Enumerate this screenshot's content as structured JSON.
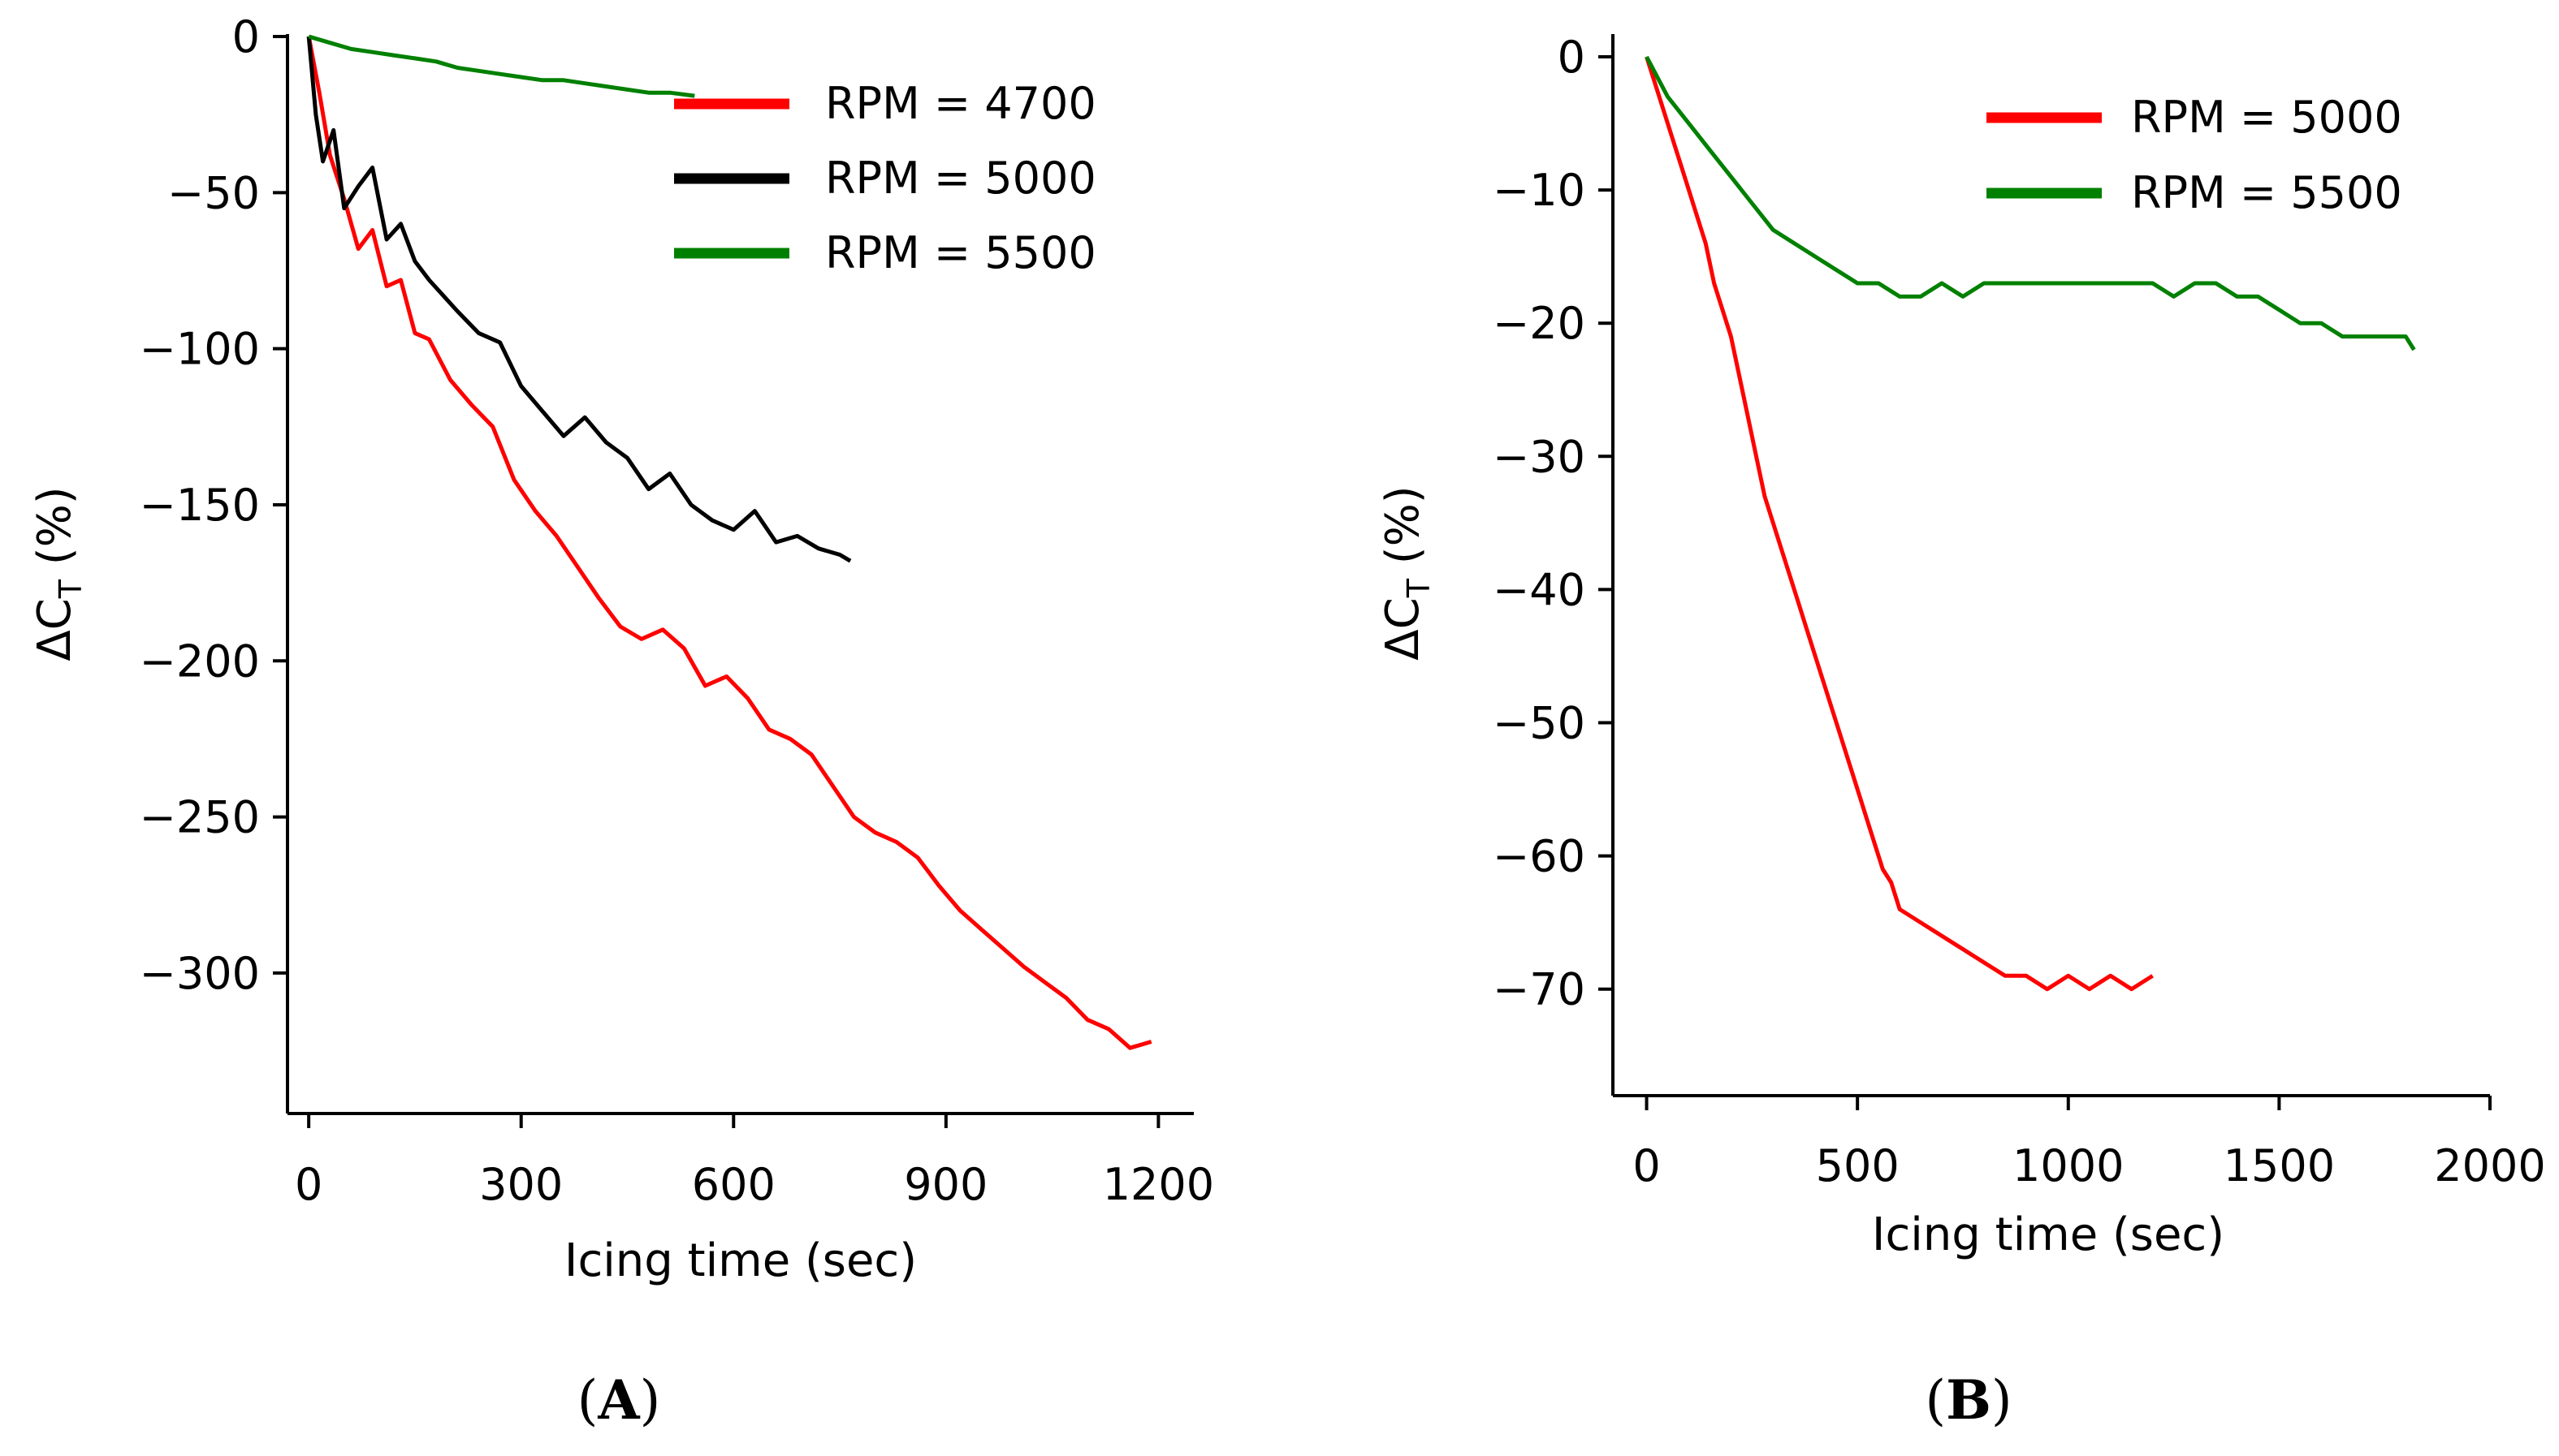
{
  "chart_data": [
    {
      "type": "line",
      "xlabel": "Icing time (sec)",
      "ylabel": "ΔCT (%)",
      "ylabel_main": "ΔC",
      "ylabel_sub": "T",
      "ylabel_suffix": " (%)",
      "xlim": [
        -30,
        1250
      ],
      "ylim": [
        -345,
        0
      ],
      "xticks": [
        0,
        300,
        600,
        900,
        1200
      ],
      "yticks": [
        0,
        -50,
        -100,
        -150,
        -200,
        -250,
        -300
      ],
      "xtick_labels": [
        "0",
        "300",
        "600",
        "900",
        "1200"
      ],
      "ytick_labels": [
        "0",
        "−50",
        "−100",
        "−150",
        "−200",
        "−250",
        "−300"
      ],
      "legend_position": "top-right",
      "panel_label": "A",
      "series": [
        {
          "name": "RPM = 4700",
          "color": "#ff0000",
          "x": [
            0,
            15,
            30,
            50,
            70,
            90,
            110,
            130,
            150,
            170,
            200,
            230,
            260,
            290,
            320,
            350,
            380,
            410,
            440,
            470,
            500,
            530,
            560,
            590,
            620,
            650,
            680,
            710,
            740,
            770,
            800,
            830,
            860,
            890,
            920,
            950,
            980,
            1010,
            1040,
            1070,
            1100,
            1130,
            1160,
            1190
          ],
          "y": [
            0,
            -18,
            -38,
            -52,
            -68,
            -62,
            -80,
            -78,
            -95,
            -97,
            -110,
            -118,
            -125,
            -142,
            -152,
            -160,
            -170,
            -180,
            -189,
            -193,
            -190,
            -196,
            -208,
            -205,
            -212,
            -222,
            -225,
            -230,
            -240,
            -250,
            -255,
            -258,
            -263,
            -272,
            -280,
            -286,
            -292,
            -298,
            -303,
            -308,
            -315,
            -318,
            -324,
            -322
          ]
        },
        {
          "name": "RPM = 5000",
          "color": "#000000",
          "x": [
            0,
            10,
            20,
            35,
            50,
            70,
            90,
            110,
            130,
            150,
            170,
            190,
            210,
            240,
            270,
            300,
            330,
            360,
            390,
            420,
            450,
            480,
            510,
            540,
            570,
            600,
            630,
            660,
            690,
            720,
            750,
            765
          ],
          "y": [
            0,
            -25,
            -40,
            -30,
            -55,
            -48,
            -42,
            -65,
            -60,
            -72,
            -78,
            -83,
            -88,
            -95,
            -98,
            -112,
            -120,
            -128,
            -122,
            -130,
            -135,
            -145,
            -140,
            -150,
            -155,
            -158,
            -152,
            -162,
            -160,
            -164,
            -166,
            -168
          ]
        },
        {
          "name": "RPM = 5500",
          "color": "#008000",
          "x": [
            0,
            30,
            60,
            90,
            120,
            150,
            180,
            210,
            240,
            270,
            300,
            330,
            360,
            390,
            420,
            450,
            480,
            510,
            545
          ],
          "y": [
            0,
            -2,
            -4,
            -5,
            -6,
            -7,
            -8,
            -10,
            -11,
            -12,
            -13,
            -14,
            -14,
            -15,
            -16,
            -17,
            -18,
            -18,
            -19
          ]
        }
      ]
    },
    {
      "type": "line",
      "xlabel": "Icing time (sec)",
      "ylabel": "ΔCT (%)",
      "ylabel_main": "ΔC",
      "ylabel_sub": "T",
      "ylabel_suffix": " (%)",
      "xlim": [
        -80,
        2000
      ],
      "ylim": [
        -78,
        0
      ],
      "xticks": [
        0,
        500,
        1000,
        1500,
        2000
      ],
      "yticks": [
        0,
        -10,
        -20,
        -30,
        -40,
        -50,
        -60,
        -70
      ],
      "xtick_labels": [
        "0",
        "500",
        "1000",
        "1500",
        "2000"
      ],
      "ytick_labels": [
        "0",
        "−10",
        "−20",
        "−30",
        "−40",
        "−50",
        "−60",
        "−70"
      ],
      "legend_position": "top-right",
      "panel_label": "B",
      "series": [
        {
          "name": "RPM = 5000",
          "color": "#ff0000",
          "x": [
            0,
            20,
            40,
            60,
            80,
            100,
            120,
            140,
            160,
            180,
            200,
            220,
            240,
            260,
            280,
            300,
            320,
            340,
            360,
            380,
            400,
            420,
            440,
            460,
            480,
            500,
            520,
            540,
            560,
            580,
            600,
            650,
            700,
            750,
            800,
            850,
            900,
            950,
            1000,
            1050,
            1100,
            1150,
            1200
          ],
          "y": [
            0,
            -2,
            -4,
            -6,
            -8,
            -10,
            -12,
            -14,
            -17,
            -19,
            -21,
            -24,
            -27,
            -30,
            -33,
            -35,
            -37,
            -39,
            -41,
            -43,
            -45,
            -47,
            -49,
            -51,
            -53,
            -55,
            -57,
            -59,
            -61,
            -62,
            -64,
            -65,
            -66,
            -67,
            -68,
            -69,
            -69,
            -70,
            -69,
            -70,
            -69,
            -70,
            -69
          ]
        },
        {
          "name": "RPM = 5500",
          "color": "#008000",
          "x": [
            0,
            50,
            100,
            150,
            200,
            250,
            300,
            350,
            400,
            450,
            500,
            550,
            600,
            650,
            700,
            750,
            800,
            850,
            900,
            950,
            1000,
            1050,
            1100,
            1150,
            1200,
            1250,
            1300,
            1350,
            1400,
            1450,
            1500,
            1550,
            1600,
            1650,
            1700,
            1750,
            1800,
            1820
          ],
          "y": [
            0,
            -3,
            -5,
            -7,
            -9,
            -11,
            -13,
            -14,
            -15,
            -16,
            -17,
            -17,
            -18,
            -18,
            -17,
            -18,
            -17,
            -17,
            -17,
            -17,
            -17,
            -17,
            -17,
            -17,
            -17,
            -18,
            -17,
            -17,
            -18,
            -18,
            -19,
            -20,
            -20,
            -21,
            -21,
            -21,
            -21,
            -22
          ]
        }
      ]
    }
  ]
}
